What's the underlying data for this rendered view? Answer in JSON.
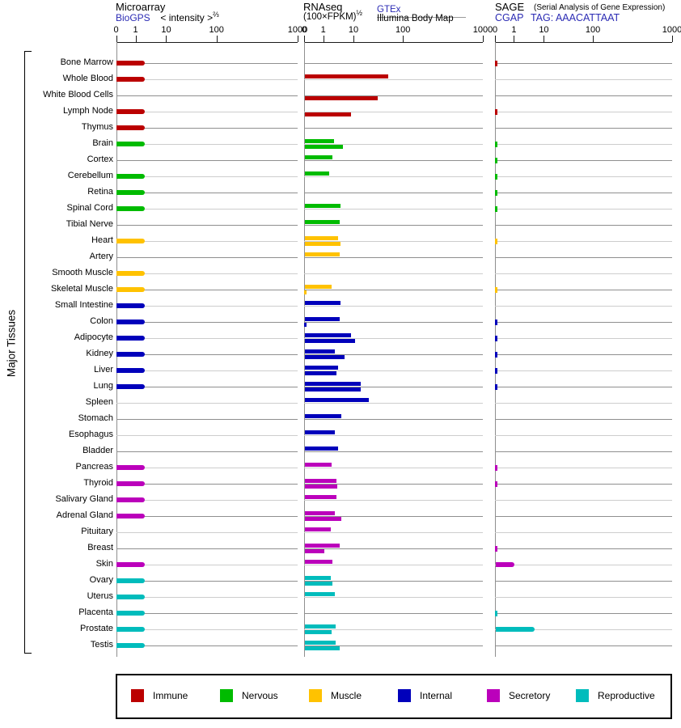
{
  "sidebar_label": "Major Tissues",
  "header": {
    "microarray": {
      "title": "Microarray",
      "source": "BioGPS",
      "scale_label": "< intensity >",
      "scale_sup": "⅔"
    },
    "rnaseq": {
      "title": "RNAseq",
      "scale_label": "(100×FPKM)",
      "scale_sup": "½",
      "source_top": "GTEx",
      "source_bottom": "Illumina Body Map"
    },
    "sage": {
      "title": "SAGE",
      "subtitle": "(Serial Analysis of Gene Expression)",
      "source": "CGAP",
      "tag": "TAG: AAACATTAAT"
    }
  },
  "legend": {
    "items": [
      {
        "label": "Immune",
        "color": "#bb0000"
      },
      {
        "label": "Nervous",
        "color": "#00bb00"
      },
      {
        "label": "Muscle",
        "color": "#ffc200"
      },
      {
        "label": "Internal",
        "color": "#0000bb"
      },
      {
        "label": "Secretory",
        "color": "#bb00bb"
      },
      {
        "label": "Reproductive",
        "color": "#00bcbc"
      }
    ]
  },
  "chart_data": {
    "type": "bar",
    "orientation": "horizontal",
    "x_scale": "log-like",
    "x_ticks": [
      0,
      1,
      10,
      100,
      1000
    ],
    "panels": [
      {
        "id": "microarray",
        "title": "Microarray",
        "source": "BioGPS",
        "units": "< intensity >^(2/3)"
      },
      {
        "id": "rnaseq",
        "title": "RNAseq",
        "sources": [
          "GTEx",
          "Illumina Body Map"
        ],
        "units": "(100×FPKM)^(1/2)"
      },
      {
        "id": "sage",
        "title": "SAGE (Serial Analysis of Gene Expression)",
        "source": "CGAP",
        "tag": "AAACATTAAT"
      }
    ],
    "series_note": "rnaseq_gtex is drawn as the upper bar and rnaseq_illumina as the lower bar of each RNAseq row; values ≈0.1 render as tiny tick marks; null = no bar",
    "tissues": [
      {
        "name": "Bone Marrow",
        "group": "Immune",
        "microarray": 2,
        "rnaseq_gtex": null,
        "rnaseq_illumina": null,
        "sage": 0.1
      },
      {
        "name": "Whole Blood",
        "group": "Immune",
        "microarray": 2,
        "rnaseq_gtex": 50,
        "rnaseq_illumina": null,
        "sage": null
      },
      {
        "name": "White Blood Cells",
        "group": "Immune",
        "microarray": null,
        "rnaseq_gtex": null,
        "rnaseq_illumina": 30,
        "sage": null
      },
      {
        "name": "Lymph Node",
        "group": "Immune",
        "microarray": 2,
        "rnaseq_gtex": null,
        "rnaseq_illumina": 8,
        "sage": 0.1
      },
      {
        "name": "Thymus",
        "group": "Immune",
        "microarray": 2,
        "rnaseq_gtex": null,
        "rnaseq_illumina": null,
        "sage": null
      },
      {
        "name": "Brain",
        "group": "Nervous",
        "microarray": 2,
        "rnaseq_gtex": 2.2,
        "rnaseq_illumina": 4.3,
        "sage": 0.1
      },
      {
        "name": "Cortex",
        "group": "Nervous",
        "microarray": null,
        "rnaseq_gtex": 1.9,
        "rnaseq_illumina": null,
        "sage": 0.1
      },
      {
        "name": "Cerebellum",
        "group": "Nervous",
        "microarray": 2,
        "rnaseq_gtex": 1.5,
        "rnaseq_illumina": null,
        "sage": 0.1
      },
      {
        "name": "Retina",
        "group": "Nervous",
        "microarray": 2,
        "rnaseq_gtex": null,
        "rnaseq_illumina": null,
        "sage": 0.1
      },
      {
        "name": "Spinal Cord",
        "group": "Nervous",
        "microarray": 2,
        "rnaseq_gtex": 3.7,
        "rnaseq_illumina": null,
        "sage": 0.1
      },
      {
        "name": "Tibial Nerve",
        "group": "Nervous",
        "microarray": null,
        "rnaseq_gtex": 3.3,
        "rnaseq_illumina": null,
        "sage": null
      },
      {
        "name": "Heart",
        "group": "Muscle",
        "microarray": 2,
        "rnaseq_gtex": 3.1,
        "rnaseq_illumina": 3.7,
        "sage": 0.1
      },
      {
        "name": "Artery",
        "group": "Muscle",
        "microarray": null,
        "rnaseq_gtex": 3.4,
        "rnaseq_illumina": null,
        "sage": null
      },
      {
        "name": "Smooth Muscle",
        "group": "Muscle",
        "microarray": 2,
        "rnaseq_gtex": null,
        "rnaseq_illumina": null,
        "sage": null
      },
      {
        "name": "Skeletal Muscle",
        "group": "Muscle",
        "microarray": 2,
        "rnaseq_gtex": 1.8,
        "rnaseq_illumina": 0.1,
        "sage": 0.1
      },
      {
        "name": "Small Intestine",
        "group": "Internal",
        "microarray": 2,
        "rnaseq_gtex": 3.7,
        "rnaseq_illumina": null,
        "sage": null
      },
      {
        "name": "Colon",
        "group": "Internal",
        "microarray": 2,
        "rnaseq_gtex": 3.4,
        "rnaseq_illumina": 0.1,
        "sage": 0.1
      },
      {
        "name": "Adipocyte",
        "group": "Internal",
        "microarray": 2,
        "rnaseq_gtex": 8.2,
        "rnaseq_illumina": 10.7,
        "sage": 0.1
      },
      {
        "name": "Kidney",
        "group": "Internal",
        "microarray": 2,
        "rnaseq_gtex": 2.4,
        "rnaseq_illumina": 5.0,
        "sage": 0.1
      },
      {
        "name": "Liver",
        "group": "Internal",
        "microarray": 2,
        "rnaseq_gtex": 3.0,
        "rnaseq_illumina": 2.6,
        "sage": 0.1
      },
      {
        "name": "Lung",
        "group": "Internal",
        "microarray": 2,
        "rnaseq_gtex": 14,
        "rnaseq_illumina": 14,
        "sage": 0.1
      },
      {
        "name": "Spleen",
        "group": "Internal",
        "microarray": null,
        "rnaseq_gtex": 20,
        "rnaseq_illumina": null,
        "sage": null
      },
      {
        "name": "Stomach",
        "group": "Internal",
        "microarray": null,
        "rnaseq_gtex": 3.8,
        "rnaseq_illumina": null,
        "sage": null
      },
      {
        "name": "Esophagus",
        "group": "Internal",
        "microarray": null,
        "rnaseq_gtex": 2.4,
        "rnaseq_illumina": null,
        "sage": null
      },
      {
        "name": "Bladder",
        "group": "Internal",
        "microarray": null,
        "rnaseq_gtex": 3.0,
        "rnaseq_illumina": null,
        "sage": null
      },
      {
        "name": "Pancreas",
        "group": "Secretory",
        "microarray": 2,
        "rnaseq_gtex": 1.8,
        "rnaseq_illumina": null,
        "sage": 0.1
      },
      {
        "name": "Thyroid",
        "group": "Secretory",
        "microarray": 2,
        "rnaseq_gtex": 2.7,
        "rnaseq_illumina": 2.8,
        "sage": 0.1
      },
      {
        "name": "Salivary Gland",
        "group": "Secretory",
        "microarray": 2,
        "rnaseq_gtex": 2.7,
        "rnaseq_illumina": null,
        "sage": null
      },
      {
        "name": "Adrenal Gland",
        "group": "Secretory",
        "microarray": 2,
        "rnaseq_gtex": 2.3,
        "rnaseq_illumina": 3.9,
        "sage": null
      },
      {
        "name": "Pituitary",
        "group": "Secretory",
        "microarray": null,
        "rnaseq_gtex": 1.7,
        "rnaseq_illumina": null,
        "sage": null
      },
      {
        "name": "Breast",
        "group": "Secretory",
        "microarray": null,
        "rnaseq_gtex": 3.5,
        "rnaseq_illumina": 1.05,
        "sage": 0.1
      },
      {
        "name": "Skin",
        "group": "Secretory",
        "microarray": 2,
        "rnaseq_gtex": 2.0,
        "rnaseq_illumina": null,
        "sage": 1.0
      },
      {
        "name": "Ovary",
        "group": "Reproductive",
        "microarray": 2,
        "rnaseq_gtex": 1.7,
        "rnaseq_illumina": 1.9,
        "sage": null
      },
      {
        "name": "Uterus",
        "group": "Reproductive",
        "microarray": 2,
        "rnaseq_gtex": 2.3,
        "rnaseq_illumina": null,
        "sage": null
      },
      {
        "name": "Placenta",
        "group": "Reproductive",
        "microarray": 2,
        "rnaseq_gtex": null,
        "rnaseq_illumina": null,
        "sage": 0.1
      },
      {
        "name": "Prostate",
        "group": "Reproductive",
        "microarray": 2,
        "rnaseq_gtex": 2.5,
        "rnaseq_illumina": 1.8,
        "sage": 4.8
      },
      {
        "name": "Testis",
        "group": "Reproductive",
        "microarray": 2,
        "rnaseq_gtex": 2.5,
        "rnaseq_illumina": 3.3,
        "sage": null
      }
    ]
  }
}
